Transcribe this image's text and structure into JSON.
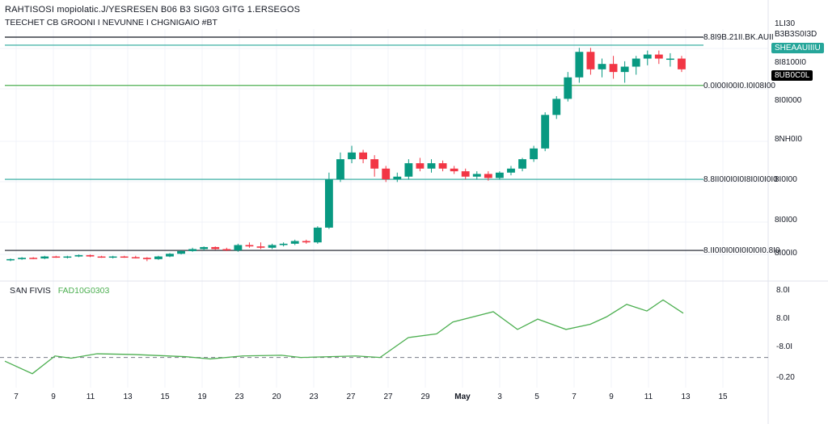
{
  "header": {
    "title": "RAHTISOSI mopiolatic.J/YESRESEN B06 B3 SIG03 GITG 1.ERSEGOS",
    "subtitle": "TEECHET  CB  GROONI  I  NEVUNNE  I  CHGNIGAIO #BT"
  },
  "indicator": {
    "name": "SAN  FIVIS",
    "value": "FAD10G0303"
  },
  "colors": {
    "up": "#089981",
    "down": "#f23645",
    "teal_line": "#26a69a",
    "black_line": "#131722",
    "indicator_line": "#4caf50",
    "grid": "#f0f3fa"
  },
  "price_axis": {
    "labels": [
      "1LI30",
      "B3B3S0I3D",
      "8I8100I0",
      "8I0I000",
      "8NH0I0",
      "8I0I00",
      "8I0I00",
      "8I00I0"
    ],
    "top_label": "1LI30"
  },
  "price_tags": [
    {
      "text": "SHEAAUIIIU",
      "style": "teal"
    },
    {
      "text": "8UB0C0L",
      "style": "black"
    }
  ],
  "line_labels": [
    {
      "text": "8.8I9B.21II.BK.AUII",
      "color": "#131722"
    },
    {
      "text": "0.0I00I00I0.I0I08I00",
      "color": "#4caf50"
    },
    {
      "text": "8.8II0I0I0I0I8I0I0I0I0",
      "color": "#26a69a"
    },
    {
      "text": "8.II0I0I0I0I0I0I0I0.8I0",
      "color": "#131722"
    }
  ],
  "indicator_axis": {
    "labels": [
      "8.0I",
      "8.0I",
      "-8.0I",
      "-0.20"
    ]
  },
  "time_axis": {
    "labels": [
      "7",
      "9",
      "11",
      "13",
      "15",
      "19",
      "23",
      "20",
      "23",
      "27",
      "27",
      "29",
      "May",
      "3",
      "5",
      "7",
      "9",
      "11",
      "13",
      "15"
    ]
  },
  "chart_data": {
    "type": "candlestick",
    "candles": [
      [
        100,
        101,
        99,
        100.5
      ],
      [
        100.5,
        102,
        100,
        101.5
      ],
      [
        101.5,
        102,
        100.5,
        101
      ],
      [
        101,
        103,
        100.5,
        102.5
      ],
      [
        102.5,
        103,
        101.5,
        102
      ],
      [
        102,
        103,
        101,
        102.5
      ],
      [
        102.5,
        104,
        102,
        103.5
      ],
      [
        103.5,
        104,
        102,
        102.5
      ],
      [
        102.5,
        103,
        101.5,
        102
      ],
      [
        102,
        103,
        101,
        102.5
      ],
      [
        102.5,
        103,
        101.5,
        102
      ],
      [
        102,
        103,
        101,
        101.5
      ],
      [
        101.5,
        102,
        99,
        100.5
      ],
      [
        100.5,
        103,
        100,
        102.5
      ],
      [
        102.5,
        105,
        102,
        104.5
      ],
      [
        104.5,
        107,
        104,
        106.5
      ],
      [
        106.5,
        109,
        106,
        108
      ],
      [
        108,
        110,
        107,
        109.5
      ],
      [
        109.5,
        110,
        107.5,
        108
      ],
      [
        108,
        109,
        106.5,
        107
      ],
      [
        107,
        112,
        106,
        111
      ],
      [
        111,
        113,
        109,
        110
      ],
      [
        110,
        113,
        108,
        109
      ],
      [
        109,
        112,
        108,
        111
      ],
      [
        111,
        113,
        110,
        112
      ],
      [
        112,
        115,
        111,
        114
      ],
      [
        114,
        115,
        112,
        113
      ],
      [
        113,
        125,
        112,
        124
      ],
      [
        124,
        165,
        123,
        160
      ],
      [
        160,
        180,
        158,
        175
      ],
      [
        175,
        185,
        172,
        180
      ],
      [
        180,
        182,
        172,
        175
      ],
      [
        175,
        178,
        162,
        168
      ],
      [
        168,
        170,
        158,
        160
      ],
      [
        160,
        165,
        158,
        162
      ],
      [
        162,
        175,
        160,
        172
      ],
      [
        172,
        176,
        166,
        168
      ],
      [
        168,
        175,
        165,
        172
      ],
      [
        172,
        174,
        166,
        168
      ],
      [
        168,
        170,
        164,
        166
      ],
      [
        166,
        168,
        160,
        162
      ],
      [
        162,
        166,
        160,
        164
      ],
      [
        164,
        166,
        159,
        161
      ],
      [
        161,
        166,
        160,
        165
      ],
      [
        165,
        170,
        163,
        168
      ],
      [
        168,
        176,
        166,
        175
      ],
      [
        175,
        185,
        173,
        183
      ],
      [
        183,
        210,
        181,
        208
      ],
      [
        208,
        222,
        205,
        220
      ],
      [
        220,
        240,
        218,
        236
      ],
      [
        236,
        258,
        232,
        255
      ],
      [
        255,
        258,
        238,
        242
      ],
      [
        242,
        250,
        236,
        246
      ],
      [
        246,
        252,
        235,
        240
      ],
      [
        240,
        248,
        232,
        244
      ],
      [
        244,
        252,
        238,
        250
      ],
      [
        250,
        256,
        245,
        253
      ],
      [
        253,
        256,
        246,
        250
      ],
      [
        250,
        254,
        244,
        250
      ],
      [
        250,
        252,
        240,
        242
      ]
    ],
    "indicator": [
      -0.05,
      -0.22,
      0.02,
      -0.01,
      0.05,
      0.04,
      0.01,
      -0.02,
      0.02,
      0.03,
      0.0,
      0.02,
      0.0,
      0.27,
      0.32,
      0.48,
      0.62,
      0.38,
      0.52,
      0.38,
      0.45,
      0.55,
      0.72,
      0.63,
      0.78,
      0.6
    ],
    "indicator_x": [
      6,
      40,
      68,
      88,
      120,
      165,
      230,
      260,
      300,
      348,
      372,
      440,
      470,
      505,
      540,
      560,
      610,
      640,
      665,
      700,
      730,
      750,
      775,
      800,
      820,
      845
    ],
    "levels": [
      {
        "value": 266,
        "color": "#131722"
      },
      {
        "value": 260,
        "color": "#26a69a"
      },
      {
        "value": 230,
        "color": "#4caf50"
      },
      {
        "value": 160,
        "color": "#26a69a"
      },
      {
        "value": 107,
        "color": "#131722"
      }
    ],
    "ylim": [
      92,
      272
    ]
  }
}
